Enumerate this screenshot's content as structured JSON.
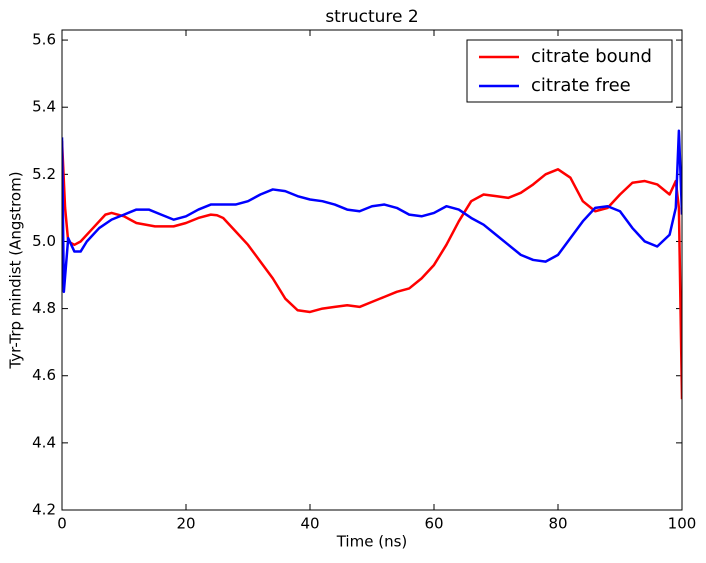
{
  "chart_data": {
    "type": "line",
    "title": "structure 2",
    "x_label": "Time (ns)",
    "y_label": "Tyr-Trp mindist (Angstrom)",
    "xlim": [
      0,
      100
    ],
    "xticks": [
      0,
      20,
      40,
      60,
      80,
      100
    ],
    "ylim": [
      4.2,
      5.63
    ],
    "yticks": [
      4.2,
      4.4,
      4.6,
      4.8,
      {
        "value": 5,
        "label": "5.0"
      },
      5.2,
      5.4,
      5.6
    ],
    "legend": "upper right",
    "series": [
      {
        "name": "citrate bound",
        "color": "#ff0000",
        "x": [
          0,
          0.5,
          1,
          2,
          3,
          5,
          7,
          8,
          10,
          12,
          15,
          18,
          20,
          22,
          24,
          25,
          26,
          28,
          30,
          32,
          34,
          36,
          38,
          40,
          42,
          44,
          46,
          48,
          50,
          52,
          54,
          56,
          58,
          60,
          62,
          64,
          66,
          68,
          70,
          72,
          74,
          76,
          78,
          80,
          82,
          84,
          86,
          88,
          90,
          92,
          94,
          96,
          98,
          99,
          99.5,
          100
        ],
        "values": [
          5.3,
          5.1,
          5.0,
          4.99,
          5.0,
          5.04,
          5.08,
          5.085,
          5.075,
          5.055,
          5.045,
          5.045,
          5.055,
          5.07,
          5.08,
          5.078,
          5.07,
          5.03,
          4.99,
          4.94,
          4.89,
          4.83,
          4.795,
          4.79,
          4.8,
          4.805,
          4.81,
          4.805,
          4.82,
          4.835,
          4.85,
          4.86,
          4.89,
          4.93,
          4.99,
          5.06,
          5.12,
          5.14,
          5.135,
          5.13,
          5.145,
          5.17,
          5.2,
          5.215,
          5.19,
          5.12,
          5.09,
          5.1,
          5.14,
          5.175,
          5.18,
          5.17,
          5.14,
          5.18,
          5.1,
          4.53
        ]
      },
      {
        "name": "citrate free",
        "color": "#0000ff",
        "x": [
          0,
          0.3,
          1,
          2,
          3,
          4,
          6,
          8,
          10,
          12,
          14,
          16,
          18,
          20,
          22,
          24,
          26,
          28,
          30,
          32,
          34,
          36,
          38,
          40,
          42,
          44,
          46,
          48,
          50,
          52,
          54,
          56,
          58,
          60,
          62,
          64,
          66,
          68,
          70,
          72,
          74,
          76,
          78,
          80,
          82,
          84,
          86,
          88,
          90,
          92,
          94,
          96,
          98,
          99,
          99.5,
          100
        ],
        "values": [
          5.31,
          4.85,
          5.01,
          4.97,
          4.97,
          5.0,
          5.04,
          5.065,
          5.08,
          5.095,
          5.095,
          5.08,
          5.065,
          5.075,
          5.095,
          5.11,
          5.11,
          5.11,
          5.12,
          5.14,
          5.155,
          5.15,
          5.135,
          5.125,
          5.12,
          5.11,
          5.095,
          5.09,
          5.105,
          5.11,
          5.1,
          5.08,
          5.075,
          5.085,
          5.105,
          5.095,
          5.07,
          5.05,
          5.02,
          4.99,
          4.96,
          4.945,
          4.94,
          4.96,
          5.01,
          5.06,
          5.1,
          5.105,
          5.09,
          5.04,
          5.0,
          4.985,
          5.02,
          5.1,
          5.33,
          5.08
        ]
      }
    ]
  }
}
